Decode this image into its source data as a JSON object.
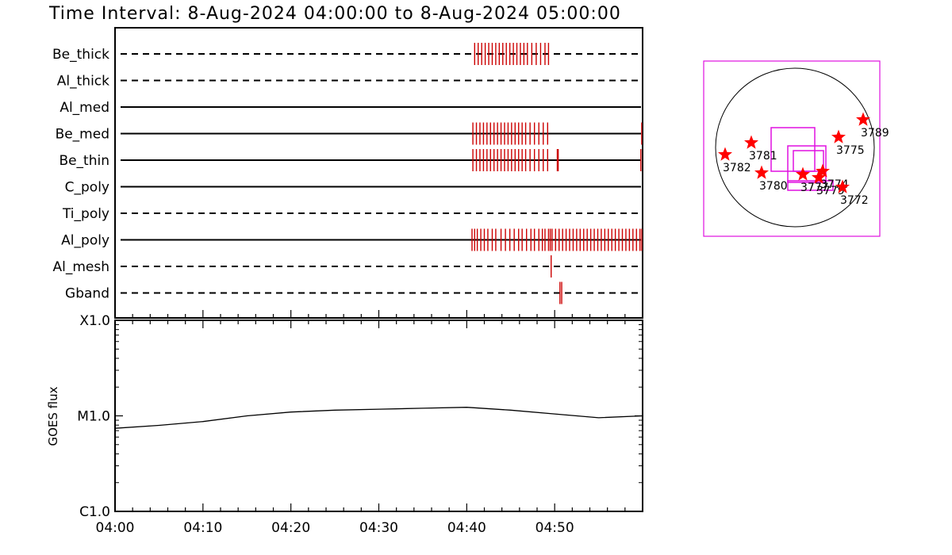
{
  "title": "Time Interval:  8-Aug-2024 04:00:00 to  8-Aug-2024 05:00:00",
  "colors": {
    "axes": "#000000",
    "event_ticks": "#cc0000",
    "fov_box": "#e010e0",
    "ar_marker": "#ff0000",
    "goes_curve": "#000000"
  },
  "chart_data": [
    {
      "type": "timeline",
      "panel": "filter-coverage",
      "x_range": [
        "04:00",
        "05:00"
      ],
      "filters": [
        {
          "name": "Be_thick",
          "line": "dashed",
          "events": [
            40.9,
            41.3,
            41.7,
            42.1,
            42.5,
            42.9,
            43.3,
            43.7,
            44.1,
            44.5,
            44.9,
            45.3,
            45.7,
            46.1,
            46.5,
            46.9,
            47.4,
            47.9,
            48.4,
            48.9,
            49.3
          ]
        },
        {
          "name": "Al_thick",
          "line": "dashed",
          "events": []
        },
        {
          "name": "Al_med",
          "line": "solid",
          "events": []
        },
        {
          "name": "Be_med",
          "line": "solid",
          "events": [
            40.7,
            41.1,
            41.5,
            41.9,
            42.3,
            42.7,
            43.1,
            43.5,
            43.9,
            44.3,
            44.7,
            45.1,
            45.5,
            45.9,
            46.3,
            46.7,
            47.2,
            47.7,
            48.2,
            48.7,
            49.2,
            59.9
          ]
        },
        {
          "name": "Be_thin",
          "line": "solid",
          "events": [
            40.7,
            41.1,
            41.5,
            41.9,
            42.3,
            42.7,
            43.1,
            43.5,
            43.9,
            44.3,
            44.7,
            45.1,
            45.5,
            45.9,
            46.3,
            46.7,
            47.2,
            47.7,
            48.2,
            48.7,
            49.2,
            50.3,
            50.4,
            59.8
          ]
        },
        {
          "name": "C_poly",
          "line": "solid",
          "events": []
        },
        {
          "name": "Ti_poly",
          "line": "dashed",
          "events": []
        },
        {
          "name": "Al_poly",
          "line": "solid",
          "events": [
            40.6,
            40.9,
            41.2,
            41.6,
            42.0,
            42.4,
            42.9,
            43.3,
            43.9,
            44.4,
            44.9,
            45.4,
            45.9,
            46.3,
            46.8,
            47.3,
            47.7,
            48.2,
            48.6,
            48.9,
            49.3,
            49.5,
            49.7,
            50.1,
            50.5,
            50.9,
            51.3,
            51.7,
            52.1,
            52.5,
            52.9,
            53.3,
            53.7,
            54.1,
            54.5,
            54.9,
            55.3,
            55.7,
            56.1,
            56.5,
            56.9,
            57.3,
            57.7,
            58.1,
            58.5,
            58.9,
            59.3,
            59.7,
            59.95
          ]
        },
        {
          "name": "Al_mesh",
          "line": "dashed",
          "events": [
            49.6
          ]
        },
        {
          "name": "Gband",
          "line": "dashed",
          "events": [
            50.6,
            50.8
          ]
        }
      ]
    },
    {
      "type": "line",
      "panel": "goes-flux",
      "ylabel": "GOES flux",
      "y_scale": "log",
      "yticks": [
        "X1.0",
        "M1.0",
        "C1.0"
      ],
      "xticks": [
        "04:00",
        "04:10",
        "04:20",
        "04:30",
        "04:40",
        "04:50"
      ],
      "x_minutes": [
        0,
        5,
        10,
        15,
        20,
        25,
        30,
        35,
        40,
        45,
        50,
        55,
        60
      ],
      "log10_flux": [
        -5.13,
        -5.1,
        -5.06,
        -5.0,
        -4.96,
        -4.94,
        -4.93,
        -4.92,
        -4.91,
        -4.94,
        -4.98,
        -5.02,
        -5.0
      ]
    },
    {
      "type": "scatter",
      "panel": "solar-disk-map",
      "active_regions": [
        {
          "label": "3789",
          "x": 0.86,
          "y": 0.35
        },
        {
          "label": "3775",
          "x": 0.55,
          "y": 0.13
        },
        {
          "label": "3781",
          "x": -0.55,
          "y": 0.06
        },
        {
          "label": "3782",
          "x": -0.88,
          "y": -0.09
        },
        {
          "label": "3780",
          "x": -0.42,
          "y": -0.32
        },
        {
          "label": "3777",
          "x": 0.1,
          "y": -0.34
        },
        {
          "label": "3774",
          "x": 0.35,
          "y": -0.3
        },
        {
          "label": "3779",
          "x": 0.3,
          "y": -0.38
        },
        {
          "label": "3772",
          "x": 0.6,
          "y": -0.5
        }
      ]
    }
  ]
}
